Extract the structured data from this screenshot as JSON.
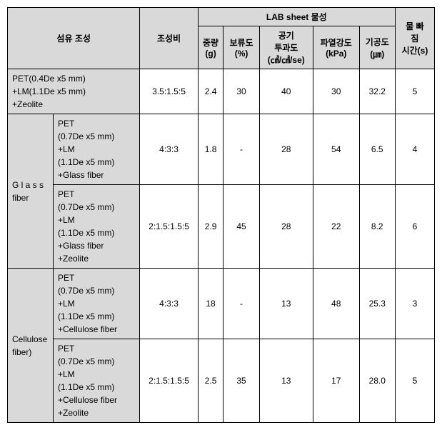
{
  "headers": {
    "fiber_comp": "섬유 조성",
    "ratio": "조성비",
    "lab_group": "LAB sheet 물성",
    "weight": "중량\n(g)",
    "retention": "보류도\n(%)",
    "air": "공기\n투과도\n(㎤/㎠/se)",
    "burst": "파열강도\n(kPa)",
    "pore": "기공도\n(㎛)",
    "drain": "물 빠\n짐\n시간(s)"
  },
  "row1": {
    "comp": "PET(0.4De x5 mm)\n+LM(1.1De x5 mm)\n+Zeolite",
    "ratio": "3.5:1.5:5",
    "weight": "2.4",
    "retention": "30",
    "air": "40",
    "burst": "30",
    "pore": "32.2",
    "drain": "5"
  },
  "glass_label": "G l a s s\nfiber",
  "row2": {
    "comp": "PET\n(0.7De x5 mm)\n+LM\n(1.1De x5 mm)\n+Glass fiber",
    "ratio": "4:3:3",
    "weight": "1.8",
    "retention": "-",
    "air": "28",
    "burst": "54",
    "pore": "6.5",
    "drain": "4"
  },
  "row3": {
    "comp": "PET\n(0.7De x5 mm)\n+LM\n(1.1De x5 mm)\n+Glass fiber\n+Zeolite",
    "ratio": "2:1.5:1.5:5",
    "weight": "2.9",
    "retention": "45",
    "air": "28",
    "burst": "22",
    "pore": "8.2",
    "drain": "6"
  },
  "cell_label": "Cellulose\nfiber)",
  "row4": {
    "comp": "PET\n(0.7De x5 mm)\n+LM\n(1.1De x5 mm)\n+Cellulose fiber",
    "ratio": "4:3:3",
    "weight": "18",
    "retention": "-",
    "air": "13",
    "burst": "48",
    "pore": "25.3",
    "drain": "3"
  },
  "row5": {
    "comp": "PET\n(0.7De x5 mm)\n+LM\n(1.1De x5 mm)\n+Cellulose fiber\n+Zeolite",
    "ratio": "2:1.5:1.5:5",
    "weight": "2.5",
    "retention": "35",
    "air": "13",
    "burst": "17",
    "pore": "28.0",
    "drain": "5"
  }
}
